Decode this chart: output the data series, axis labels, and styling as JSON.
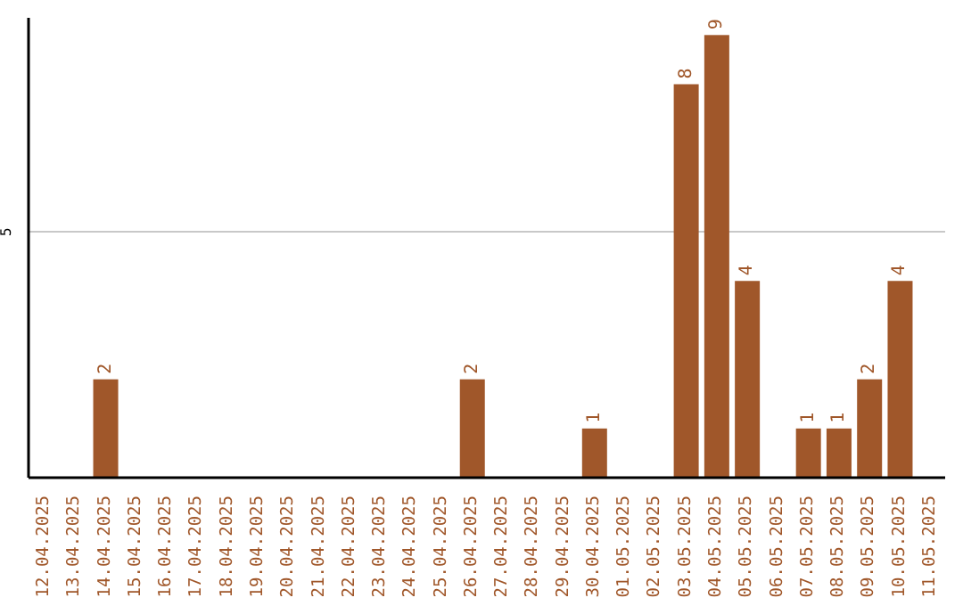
{
  "chart_data": {
    "type": "bar",
    "categories": [
      "12.04.2025",
      "13.04.2025",
      "14.04.2025",
      "15.04.2025",
      "16.04.2025",
      "17.04.2025",
      "18.04.2025",
      "19.04.2025",
      "20.04.2025",
      "21.04.2025",
      "22.04.2025",
      "23.04.2025",
      "24.04.2025",
      "25.04.2025",
      "26.04.2025",
      "27.04.2025",
      "28.04.2025",
      "29.04.2025",
      "30.04.2025",
      "01.05.2025",
      "02.05.2025",
      "03.05.2025",
      "04.05.2025",
      "05.05.2025",
      "06.05.2025",
      "07.05.2025",
      "08.05.2025",
      "09.05.2025",
      "10.05.2025",
      "11.05.2025"
    ],
    "values": [
      0,
      0,
      2,
      0,
      0,
      0,
      0,
      0,
      0,
      0,
      0,
      0,
      0,
      0,
      2,
      0,
      0,
      0,
      1,
      0,
      0,
      8,
      9,
      4,
      0,
      1,
      1,
      2,
      4,
      0
    ],
    "value_labels": [
      null,
      null,
      "2",
      null,
      null,
      null,
      null,
      null,
      null,
      null,
      null,
      null,
      null,
      null,
      "2",
      null,
      null,
      null,
      "1",
      null,
      null,
      "8",
      "9",
      "4",
      null,
      "1",
      "1",
      "2",
      "4",
      null
    ],
    "color": "#a0572a",
    "ylim": [
      0,
      9.35
    ],
    "yticks": [
      5
    ],
    "grid": "y"
  }
}
